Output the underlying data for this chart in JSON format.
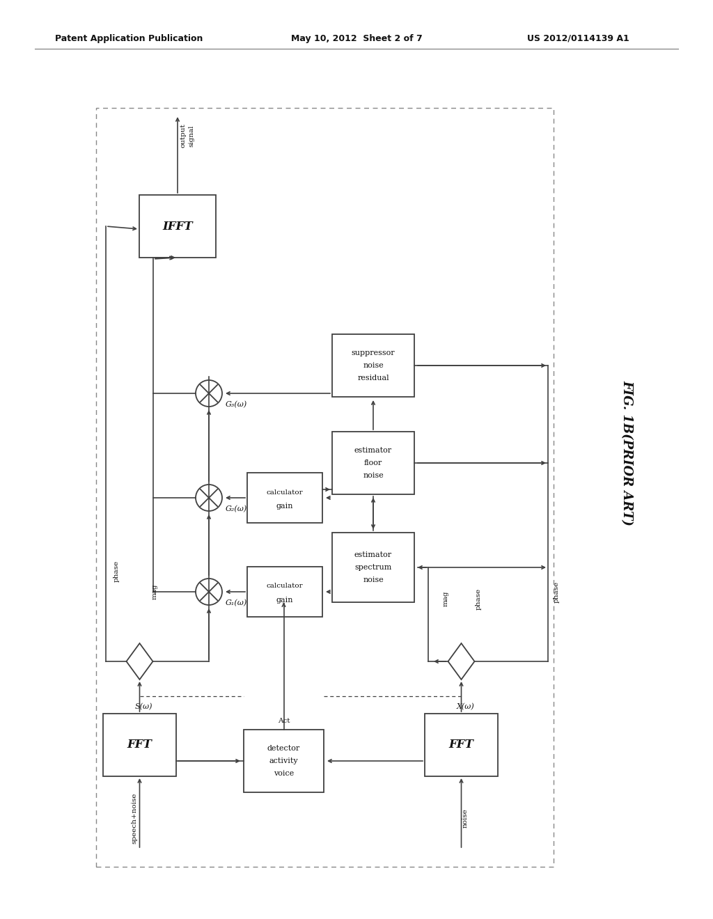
{
  "title_left": "Patent Application Publication",
  "title_mid": "May 10, 2012  Sheet 2 of 7",
  "title_right": "US 2012/0114139 A1",
  "fig_label": "FIG. 1B(PRIOR ART)",
  "bg_color": "#ffffff",
  "line_color": "#404040",
  "text_color": "#111111"
}
